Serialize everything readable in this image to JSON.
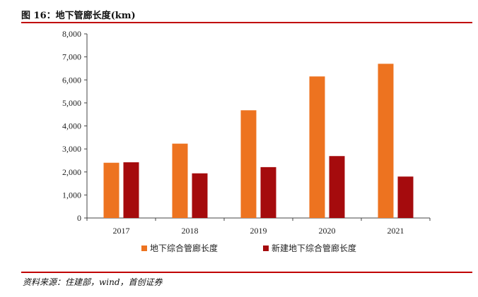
{
  "header": {
    "title": "图 16：地下管廊长度(km)"
  },
  "footer": {
    "source": "资料来源：住建部，wind，首创证券"
  },
  "colors": {
    "rule": "#c00000",
    "series1": "#ed7320",
    "series2": "#a50b0d"
  },
  "chart_data": {
    "type": "bar",
    "title": "",
    "xlabel": "",
    "ylabel": "",
    "categories": [
      "2017",
      "2018",
      "2019",
      "2020",
      "2021"
    ],
    "series": [
      {
        "name": "地下综合管廊长度",
        "values": [
          2400,
          3230,
          4680,
          6150,
          6700
        ]
      },
      {
        "name": "新建地下综合管廊长度",
        "values": [
          2420,
          1940,
          2210,
          2690,
          1800
        ]
      }
    ],
    "yticks": [
      "0",
      "1,000",
      "2,000",
      "3,000",
      "4,000",
      "5,000",
      "6,000",
      "7,000",
      "8,000"
    ],
    "ylim": [
      0,
      8000
    ],
    "grid": false,
    "legend": "bottom"
  }
}
